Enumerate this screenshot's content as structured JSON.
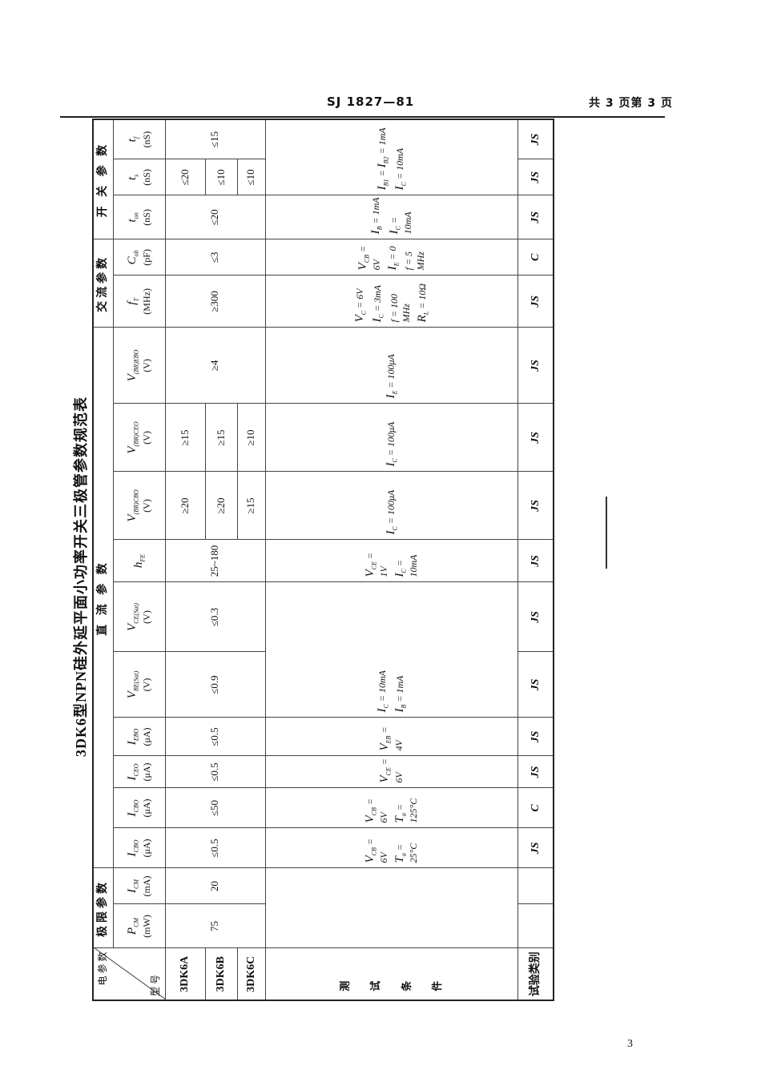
{
  "header": {
    "code": "SJ 1827—81",
    "pages": "共 3 页第 3 页"
  },
  "title": "3DK6型NPN硅外延平面小功率开关三极管参数规范表",
  "page_number": "3",
  "table": {
    "corner": {
      "top": "电 参 数",
      "bottom": "型 号"
    },
    "groups": [
      {
        "label": "极限参数",
        "span": 2
      },
      {
        "label": "直 流 参 数",
        "span": 10
      },
      {
        "label": "交流参数",
        "span": 2
      },
      {
        "label": "开 关 参 数",
        "span": 3
      }
    ],
    "columns": [
      {
        "sym": "P",
        "sub": "CM",
        "unit": "(mW)"
      },
      {
        "sym": "I",
        "sub": "CM",
        "unit": "(mA)"
      },
      {
        "sym": "I",
        "sub": "CBO",
        "unit": "(μA)"
      },
      {
        "sym": "I",
        "sub": "CBO",
        "unit": "(μA)"
      },
      {
        "sym": "I",
        "sub": "CEO",
        "unit": "(μA)"
      },
      {
        "sym": "I",
        "sub": "EBO",
        "unit": "(μA)"
      },
      {
        "sym": "V",
        "sub": "BE(Sat)",
        "unit": "(V)"
      },
      {
        "sym": "V",
        "sub": "CE(Sat)",
        "unit": "(V)"
      },
      {
        "sym": "h",
        "sub": "FE",
        "unit": ""
      },
      {
        "sym": "V",
        "sub": "(BR)CBO",
        "unit": "(V)"
      },
      {
        "sym": "V",
        "sub": "(BR)CEO",
        "unit": "(V)"
      },
      {
        "sym": "V",
        "sub": "(BR)EBO",
        "unit": "(V)"
      },
      {
        "sym": "f",
        "sub": "T",
        "unit": "(MHz)"
      },
      {
        "sym": "C",
        "sub": "ob",
        "unit": "(pF)"
      },
      {
        "sym": "t",
        "sub": "on",
        "unit": "(nS)"
      },
      {
        "sym": "t",
        "sub": "s",
        "unit": "(nS)"
      },
      {
        "sym": "t",
        "sub": "f",
        "unit": "(nS)"
      }
    ],
    "models": [
      "3DK6A",
      "3DK6B",
      "3DK6C"
    ],
    "common_values": {
      "0": "75",
      "1": "20",
      "2": "≤0.5",
      "3": "≤50",
      "4": "≤0.5",
      "5": "≤0.5",
      "6": "≤0.9",
      "7": "≤0.3",
      "8": "25~180",
      "11": "≥4",
      "12": "≥300",
      "13": "≤3",
      "14": "≤20",
      "16": "≤15"
    },
    "per_model_values": {
      "9": [
        "≥20",
        "≥20",
        "≥15"
      ],
      "10": [
        "≥15",
        "≥15",
        "≥10"
      ],
      "15": [
        "≤20",
        "≤10",
        "≤10"
      ]
    },
    "conditions_label": "测 试 条 件",
    "conditions": [
      {
        "cols": [
          0,
          1
        ],
        "lines": []
      },
      {
        "cols": [
          2
        ],
        "lines": [
          "V_CB = 6V",
          "T_a = 25°C"
        ]
      },
      {
        "cols": [
          3
        ],
        "lines": [
          "V_CB = 6V",
          "T_a = 125°C"
        ]
      },
      {
        "cols": [
          4
        ],
        "lines": [
          "V_CE = 6V"
        ]
      },
      {
        "cols": [
          5
        ],
        "lines": [
          "V_EB = 4V"
        ]
      },
      {
        "cols": [
          6,
          7
        ],
        "lines": [
          "I_C = 10mA",
          "I_B = 1mA"
        ]
      },
      {
        "cols": [
          8
        ],
        "lines": [
          "V_CE = 1V",
          "I_C = 10mA"
        ]
      },
      {
        "cols": [
          9
        ],
        "lines": [
          "I_C = 100μA"
        ]
      },
      {
        "cols": [
          10
        ],
        "lines": [
          "I_C = 100μA"
        ]
      },
      {
        "cols": [
          11
        ],
        "lines": [
          "I_E = 100μA"
        ]
      },
      {
        "cols": [
          12
        ],
        "lines": [
          "V_C = 6V",
          "I_C = 3mA",
          "f = 100 MHz",
          "R_L = 10Ω"
        ]
      },
      {
        "cols": [
          13
        ],
        "lines": [
          "V_CB = 6V",
          "I_E = 0",
          "f = 5 MHz"
        ]
      },
      {
        "cols": [
          14
        ],
        "lines": [
          "I_B = 1mA",
          "I_C = 10mA"
        ]
      },
      {
        "cols": [
          15,
          16
        ],
        "lines": [
          "I_B1 = I_B2 = 1mA",
          "I_C = 10mA"
        ]
      }
    ],
    "test_class_label": "试验类别",
    "test_class": [
      "",
      "",
      "JS",
      "C",
      "JS",
      "JS",
      "JS",
      "JS",
      "JS",
      "JS",
      "JS",
      "JS",
      "JS",
      "C",
      "JS",
      "JS",
      "JS"
    ]
  }
}
